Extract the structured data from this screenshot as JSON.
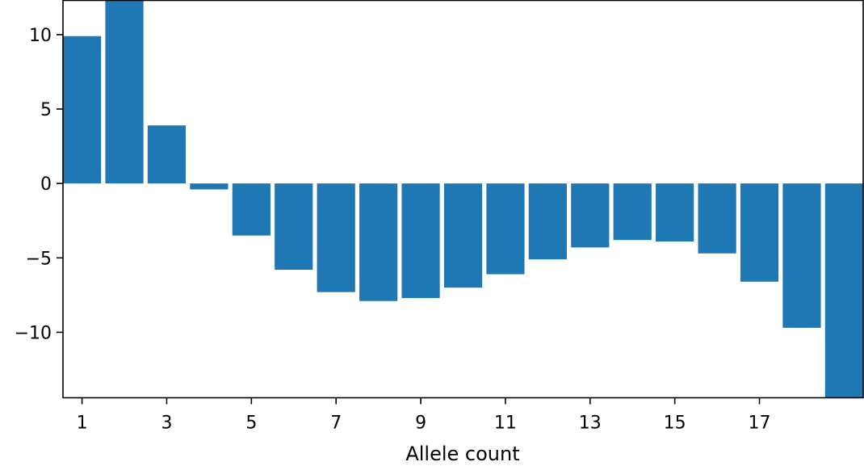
{
  "chart_data": {
    "type": "bar",
    "x": [
      1,
      2,
      3,
      4,
      5,
      6,
      7,
      8,
      9,
      10,
      11,
      12,
      13,
      14,
      15,
      16,
      17,
      18,
      19
    ],
    "values": [
      9.9,
      12.3,
      3.9,
      -0.4,
      -3.5,
      -5.8,
      -7.3,
      -7.9,
      -7.7,
      -7.0,
      -6.1,
      -5.1,
      -4.3,
      -3.8,
      -3.9,
      -4.7,
      -6.6,
      -9.7,
      -14.4
    ],
    "bar_color": "#1f77b4",
    "title": "",
    "xlabel": "Allele count",
    "ylabel": "",
    "xlim": [
      0.55,
      19.45
    ],
    "ylim": [
      -14.4,
      12.3
    ],
    "x_ticks": [
      1,
      3,
      5,
      7,
      9,
      11,
      13,
      15,
      17
    ],
    "x_tick_labels": [
      "1",
      "3",
      "5",
      "7",
      "9",
      "11",
      "13",
      "15",
      "17"
    ],
    "y_ticks": [
      10,
      5,
      0,
      -5,
      -10
    ],
    "y_tick_labels": [
      "10",
      "5",
      "0",
      "−5",
      "−10"
    ],
    "grid": false,
    "legend": "none"
  }
}
